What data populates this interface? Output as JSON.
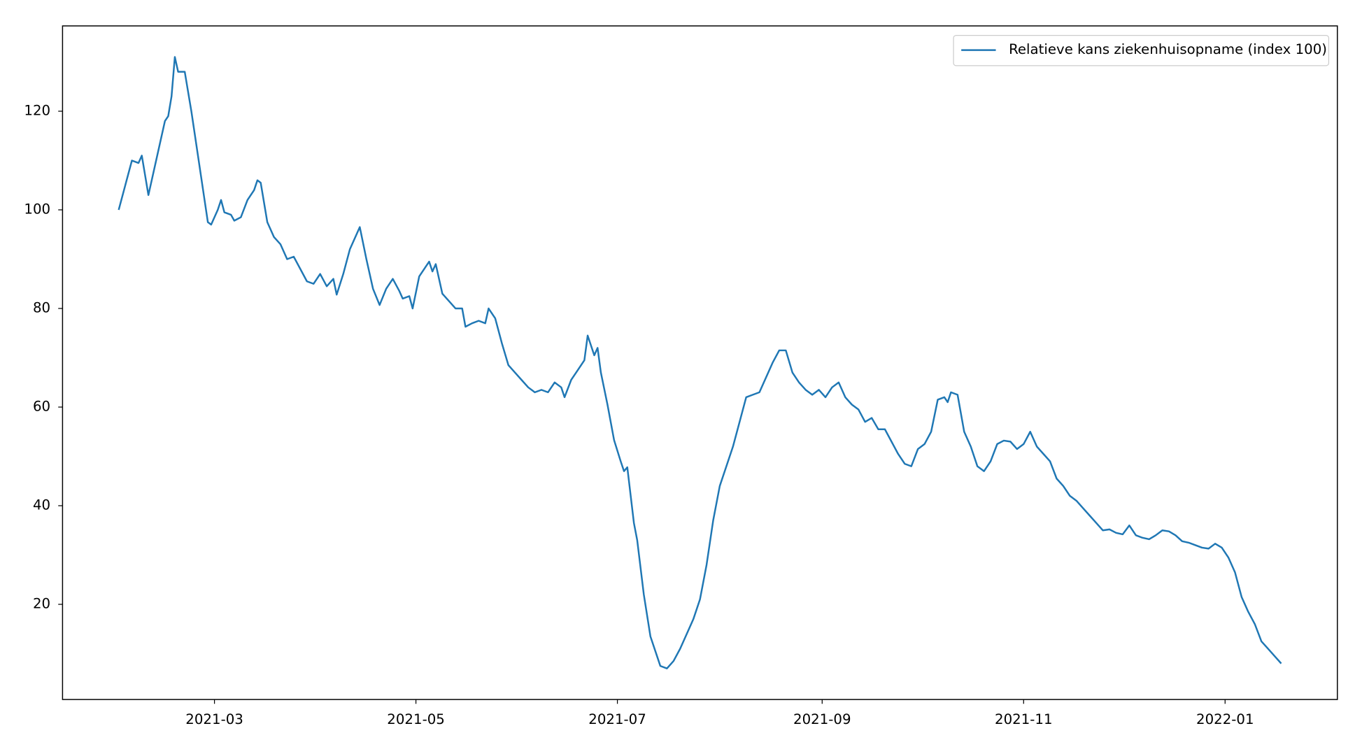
{
  "chart_data": {
    "type": "line",
    "x": [
      "2021-01-31",
      "2021-02-02",
      "2021-02-04",
      "2021-02-06",
      "2021-02-07",
      "2021-02-09",
      "2021-02-11",
      "2021-02-14",
      "2021-02-15",
      "2021-02-16",
      "2021-02-17",
      "2021-02-18",
      "2021-02-20",
      "2021-02-22",
      "2021-02-24",
      "2021-02-26",
      "2021-02-27",
      "2021-02-28",
      "2021-03-02",
      "2021-03-03",
      "2021-03-04",
      "2021-03-06",
      "2021-03-07",
      "2021-03-09",
      "2021-03-11",
      "2021-03-13",
      "2021-03-14",
      "2021-03-15",
      "2021-03-17",
      "2021-03-19",
      "2021-03-21",
      "2021-03-23",
      "2021-03-25",
      "2021-03-27",
      "2021-03-29",
      "2021-03-31",
      "2021-04-02",
      "2021-04-04",
      "2021-04-06",
      "2021-04-07",
      "2021-04-09",
      "2021-04-11",
      "2021-04-13",
      "2021-04-14",
      "2021-04-16",
      "2021-04-18",
      "2021-04-20",
      "2021-04-22",
      "2021-04-24",
      "2021-04-26",
      "2021-04-27",
      "2021-04-29",
      "2021-04-30",
      "2021-05-02",
      "2021-05-04",
      "2021-05-05",
      "2021-05-06",
      "2021-05-07",
      "2021-05-09",
      "2021-05-11",
      "2021-05-13",
      "2021-05-15",
      "2021-05-16",
      "2021-05-18",
      "2021-05-20",
      "2021-05-22",
      "2021-05-23",
      "2021-05-25",
      "2021-05-27",
      "2021-05-29",
      "2021-05-31",
      "2021-06-02",
      "2021-06-04",
      "2021-06-06",
      "2021-06-08",
      "2021-06-10",
      "2021-06-12",
      "2021-06-14",
      "2021-06-15",
      "2021-06-17",
      "2021-06-19",
      "2021-06-21",
      "2021-06-22",
      "2021-06-24",
      "2021-06-25",
      "2021-06-26",
      "2021-06-28",
      "2021-06-30",
      "2021-07-02",
      "2021-07-03",
      "2021-07-04",
      "2021-07-06",
      "2021-07-07",
      "2021-07-09",
      "2021-07-11",
      "2021-07-13",
      "2021-07-14",
      "2021-07-16",
      "2021-07-18",
      "2021-07-20",
      "2021-07-22",
      "2021-07-24",
      "2021-07-26",
      "2021-07-28",
      "2021-07-30",
      "2021-08-01",
      "2021-08-03",
      "2021-08-05",
      "2021-08-07",
      "2021-08-09",
      "2021-08-11",
      "2021-08-13",
      "2021-08-15",
      "2021-08-17",
      "2021-08-19",
      "2021-08-21",
      "2021-08-23",
      "2021-08-25",
      "2021-08-27",
      "2021-08-29",
      "2021-08-31",
      "2021-09-02",
      "2021-09-04",
      "2021-09-06",
      "2021-09-08",
      "2021-09-10",
      "2021-09-12",
      "2021-09-14",
      "2021-09-16",
      "2021-09-18",
      "2021-09-20",
      "2021-09-22",
      "2021-09-24",
      "2021-09-26",
      "2021-09-28",
      "2021-09-30",
      "2021-10-02",
      "2021-10-04",
      "2021-10-06",
      "2021-10-08",
      "2021-10-09",
      "2021-10-10",
      "2021-10-12",
      "2021-10-14",
      "2021-10-16",
      "2021-10-18",
      "2021-10-20",
      "2021-10-22",
      "2021-10-24",
      "2021-10-26",
      "2021-10-28",
      "2021-10-30",
      "2021-11-01",
      "2021-11-03",
      "2021-11-05",
      "2021-11-07",
      "2021-11-09",
      "2021-11-11",
      "2021-11-13",
      "2021-11-15",
      "2021-11-17",
      "2021-11-19",
      "2021-11-21",
      "2021-11-23",
      "2021-11-25",
      "2021-11-27",
      "2021-11-29",
      "2021-12-01",
      "2021-12-03",
      "2021-12-05",
      "2021-12-07",
      "2021-12-09",
      "2021-12-11",
      "2021-12-13",
      "2021-12-15",
      "2021-12-17",
      "2021-12-19",
      "2021-12-21",
      "2021-12-23",
      "2021-12-25",
      "2021-12-27",
      "2021-12-29",
      "2021-12-31",
      "2022-01-02",
      "2022-01-04",
      "2022-01-06",
      "2022-01-08",
      "2022-01-10",
      "2022-01-12",
      "2022-01-14",
      "2022-01-16",
      "2022-01-18"
    ],
    "series": [
      {
        "name": "Relatieve kans ziekenhuisopname (index 100)",
        "color": "#1f77b4",
        "values": [
          100,
          105,
          110,
          109.5,
          111,
          103,
          109,
          118,
          119,
          123,
          131,
          128,
          128,
          120,
          111,
          102,
          97.5,
          97,
          100,
          102,
          99.5,
          99,
          97.8,
          98.5,
          102,
          104,
          106,
          105.5,
          97.5,
          94.5,
          93,
          90,
          90.5,
          88,
          85.5,
          85,
          87,
          84.5,
          86,
          82.8,
          87,
          92,
          95,
          96.5,
          90,
          84,
          80.7,
          84,
          86,
          83.5,
          82,
          82.5,
          80,
          86.5,
          88.5,
          89.5,
          87.5,
          89,
          83,
          81.5,
          80,
          80,
          76.3,
          77,
          77.5,
          77,
          80,
          78,
          73,
          68.5,
          67,
          65.5,
          64,
          63,
          63.5,
          63,
          65,
          64,
          62,
          65.5,
          67.5,
          69.5,
          74.5,
          70.5,
          72,
          67,
          60.5,
          53.3,
          49,
          47,
          47.8,
          36.5,
          33,
          22,
          13.5,
          9.5,
          7.5,
          7,
          8.5,
          11,
          14,
          17,
          21,
          28,
          37,
          44,
          48,
          52,
          57,
          62,
          62.5,
          63,
          66,
          69,
          71.5,
          71.5,
          67,
          65,
          63.5,
          62.5,
          63.5,
          62,
          64,
          65,
          62,
          60.5,
          59.5,
          57,
          57.8,
          55.5,
          55.5,
          53,
          50.5,
          48.5,
          48,
          51.5,
          52.5,
          55,
          61.5,
          62,
          61,
          63,
          62.5,
          55,
          52,
          48,
          47,
          49,
          52.5,
          53.2,
          53,
          51.5,
          52.5,
          55,
          52,
          50.5,
          49,
          45.5,
          44,
          42,
          41,
          39.5,
          38,
          36.5,
          35,
          35.2,
          34.5,
          34.2,
          36,
          34,
          33.5,
          33.2,
          34,
          35,
          34.8,
          34,
          32.8,
          32.5,
          32,
          31.5,
          31.3,
          32.3,
          31.5,
          29.5,
          26.5,
          21.5,
          18.5,
          16,
          12.5,
          11,
          9.5,
          8
        ]
      }
    ],
    "xlim": [
      "2021-01-14",
      "2022-02-04"
    ],
    "xticks": [
      {
        "value": "2021-03-01",
        "label": "2021-03"
      },
      {
        "value": "2021-05-01",
        "label": "2021-05"
      },
      {
        "value": "2021-07-01",
        "label": "2021-07"
      },
      {
        "value": "2021-09-01",
        "label": "2021-09"
      },
      {
        "value": "2021-11-01",
        "label": "2021-11"
      },
      {
        "value": "2022-01-01",
        "label": "2022-01"
      }
    ],
    "ylim": [
      0.7,
      137.3
    ],
    "yticks": [
      20,
      40,
      60,
      80,
      100,
      120
    ],
    "grid": false,
    "legend": "upper right"
  }
}
